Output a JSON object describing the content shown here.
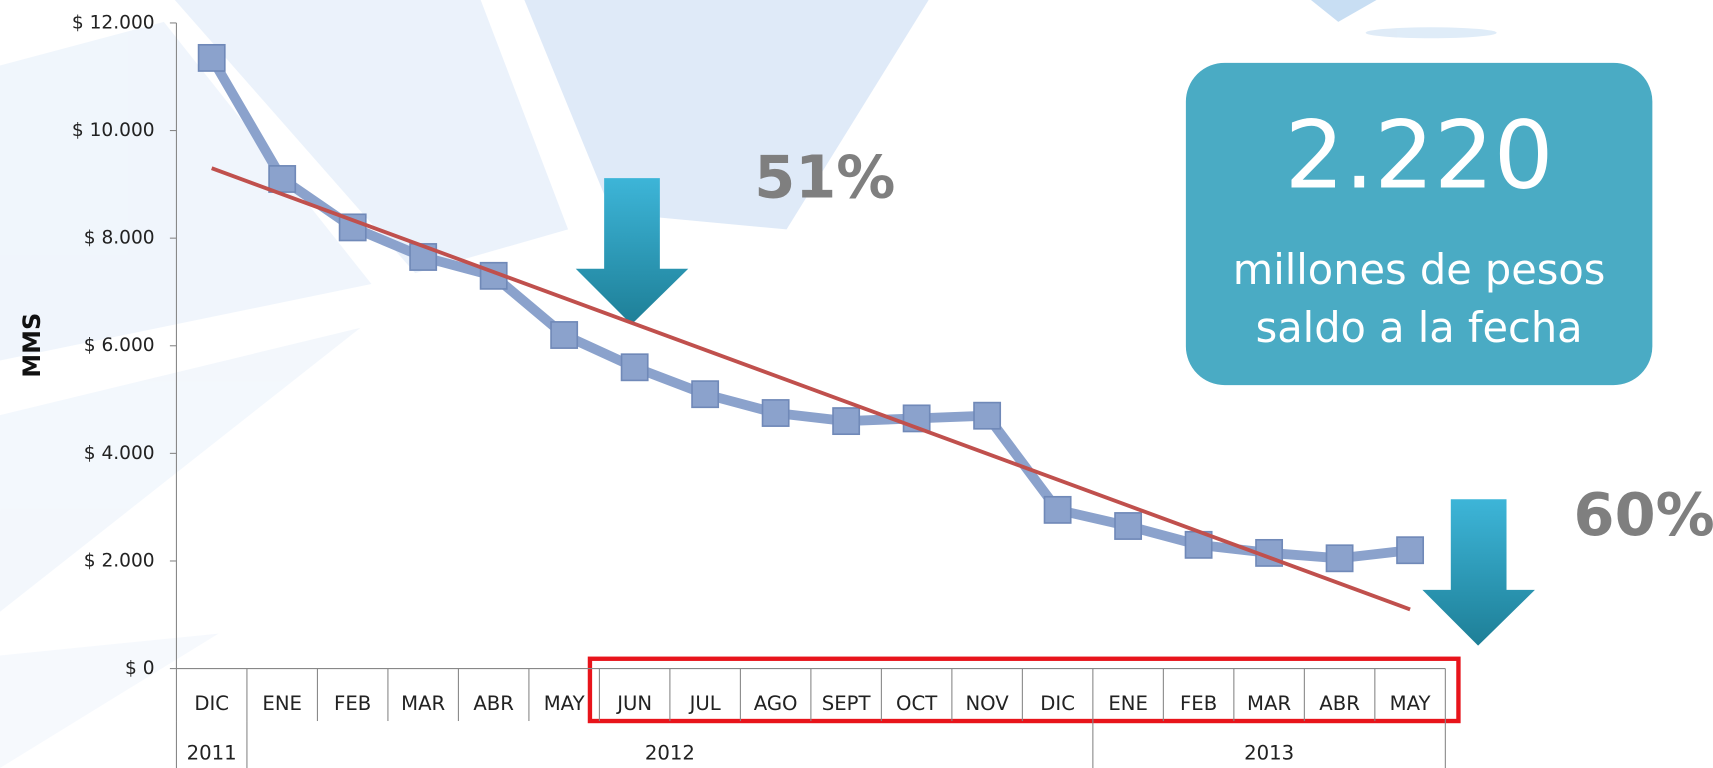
{
  "chart_data": {
    "type": "line",
    "y_label": "MMS",
    "categories": [
      "DIC",
      "ENE",
      "FEB",
      "MAR",
      "ABR",
      "MAY",
      "JUN",
      "JUL",
      "AGO",
      "SEPT",
      "OCT",
      "NOV",
      "DIC",
      "ENE",
      "FEB",
      "MAR",
      "ABR",
      "MAY"
    ],
    "year_groups": [
      {
        "label": "2011",
        "span": 1
      },
      {
        "label": "2012",
        "span": 12
      },
      {
        "label": "2013",
        "span": 5
      }
    ],
    "series": [
      {
        "color": "#8ba2cc",
        "values": [
          11350,
          9100,
          8200,
          7650,
          7300,
          6200,
          5600,
          5100,
          4750,
          4600,
          4650,
          4700,
          2950,
          2650,
          2300,
          2150,
          2050,
          2200
        ]
      }
    ],
    "trendline": {
      "color": "#c0504d",
      "values": [
        9300,
        1100
      ]
    },
    "ylim": [
      0,
      12000
    ],
    "yticks": [
      {
        "value": 0,
        "label": "$ 0"
      },
      {
        "value": 2000,
        "label": "$ 2.000"
      },
      {
        "value": 4000,
        "label": "$ 4.000"
      },
      {
        "value": 6000,
        "label": "$ 6.000"
      },
      {
        "value": 8000,
        "label": "$ 8.000"
      },
      {
        "value": 10000,
        "label": "$ 10.000"
      },
      {
        "value": 12000,
        "label": "$ 12.000"
      }
    ],
    "annotations": [
      "51%",
      "60%"
    ],
    "callout": {
      "value": "2.220",
      "line1": "millones de pesos",
      "line2": "saldo  a la fecha"
    }
  }
}
